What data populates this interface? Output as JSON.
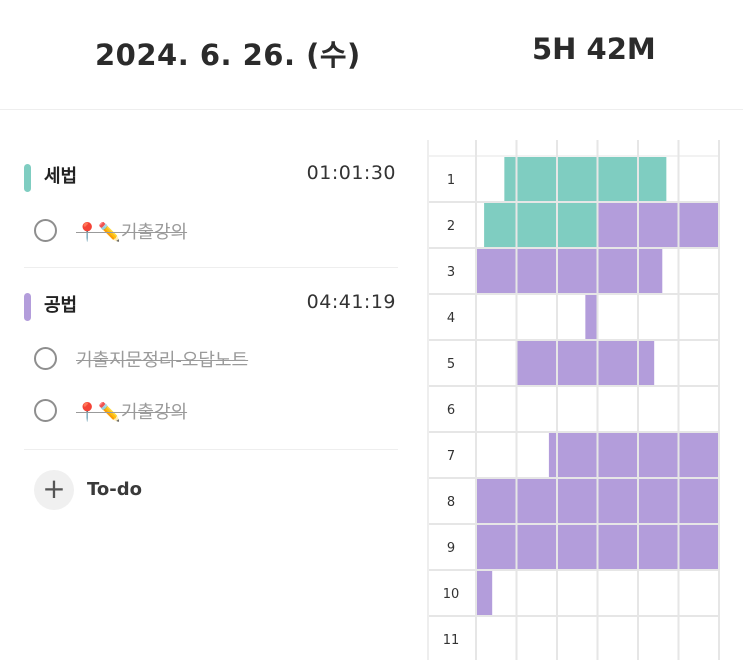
{
  "header": {
    "date": "2024. 6. 26. (수)",
    "total_time": "5H 42M"
  },
  "categories": [
    {
      "name": "세법",
      "time": "01:01:30",
      "color": "#7fcdc1",
      "todos": [
        {
          "text": "📍✏️기출강의",
          "done": true
        }
      ]
    },
    {
      "name": "공법",
      "time": "04:41:19",
      "color": "#b39ddb",
      "todos": [
        {
          "text": "기출지문정리-오답노트",
          "done": true
        },
        {
          "text": "📍✏️기출강의",
          "done": true
        }
      ]
    }
  ],
  "add_todo_label": "To-do",
  "timetable": {
    "hours": [
      "1",
      "2",
      "3",
      "4",
      "5",
      "6",
      "7",
      "8",
      "9",
      "10",
      "11"
    ],
    "fills": [
      {
        "hour": 1,
        "start_min": 7,
        "end_min": 47,
        "color": "#7fcdc1"
      },
      {
        "hour": 2,
        "start_min": 2,
        "end_min": 30,
        "color": "#7fcdc1"
      },
      {
        "hour": 2,
        "start_min": 30,
        "end_min": 60,
        "color": "#b39ddb"
      },
      {
        "hour": 3,
        "start_min": 0,
        "end_min": 46,
        "color": "#b39ddb"
      },
      {
        "hour": 4,
        "start_min": 27,
        "end_min": 30,
        "color": "#b39ddb"
      },
      {
        "hour": 5,
        "start_min": 10,
        "end_min": 44,
        "color": "#b39ddb"
      },
      {
        "hour": 7,
        "start_min": 18,
        "end_min": 60,
        "color": "#b39ddb"
      },
      {
        "hour": 8,
        "start_min": 0,
        "end_min": 60,
        "color": "#b39ddb"
      },
      {
        "hour": 9,
        "start_min": 0,
        "end_min": 60,
        "color": "#b39ddb"
      },
      {
        "hour": 10,
        "start_min": 0,
        "end_min": 4,
        "color": "#b39ddb"
      }
    ]
  }
}
